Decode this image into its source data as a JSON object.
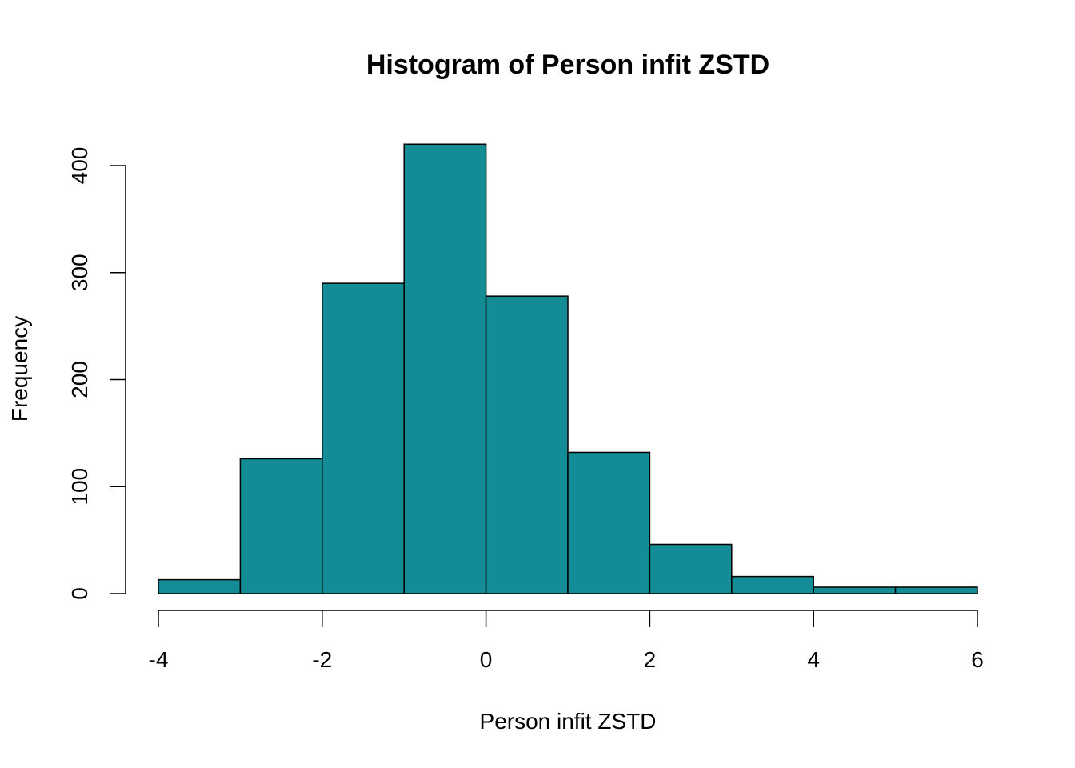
{
  "chart_data": {
    "type": "bar",
    "title": "Histogram of Person infit ZSTD",
    "xlabel": "Person infit ZSTD",
    "ylabel": "Frequency",
    "bin_edges": [
      -4,
      -3,
      -2,
      -1,
      0,
      1,
      2,
      3,
      4,
      5,
      6
    ],
    "values": [
      13,
      126,
      290,
      420,
      278,
      132,
      46,
      16,
      6,
      6
    ],
    "xlim": [
      -4,
      6
    ],
    "ylim": [
      0,
      420
    ],
    "x_ticks": [
      -4,
      -2,
      0,
      2,
      4,
      6
    ],
    "x_tick_labels": [
      "-4",
      "-2",
      "0",
      "2",
      "4",
      "6"
    ],
    "y_ticks": [
      0,
      100,
      200,
      300,
      400
    ],
    "y_tick_labels": [
      "0",
      "100",
      "200",
      "300",
      "400"
    ],
    "bar_color": "#148C96",
    "grid": false,
    "legend": "none"
  }
}
